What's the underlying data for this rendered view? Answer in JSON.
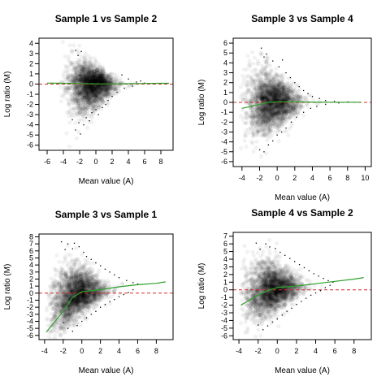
{
  "chart_data": [
    {
      "type": "scatter",
      "title": "Sample 1 vs Sample 2",
      "xlabel": "Mean value (A)",
      "ylabel": "Log ratio (M)",
      "xlim": [
        -7,
        9.5
      ],
      "ylim": [
        -6.5,
        4.5
      ],
      "xticks": [
        -6,
        -4,
        -2,
        0,
        2,
        4,
        6,
        8
      ],
      "yticks": [
        -6,
        -5,
        -4,
        -3,
        -2,
        -1,
        0,
        1,
        2,
        3,
        4
      ],
      "reference_line": 0,
      "reference_color": "#d62728",
      "fit_color": "#2ca02c",
      "fit_curve": {
        "x": [
          -6,
          -4,
          -2,
          0,
          2,
          4,
          6,
          8,
          9
        ],
        "y": [
          0.1,
          0.08,
          0.05,
          0.02,
          0.02,
          0.04,
          0.06,
          0.08,
          0.08
        ]
      },
      "density": {
        "x_range": [
          -4.5,
          5
        ],
        "center_x": -0.5,
        "upper_max": 3.5,
        "lower_min": -5
      },
      "outliers": [
        [
          -2.5,
          3.3
        ],
        [
          -2.2,
          2.8
        ],
        [
          -1.8,
          3.2
        ],
        [
          -2.9,
          -3.5
        ],
        [
          -2.5,
          -4.5
        ],
        [
          -2.1,
          -3.8
        ],
        [
          -1.9,
          -4.9
        ],
        [
          -1.5,
          -4.0
        ],
        [
          -1.2,
          -3.3
        ],
        [
          -0.8,
          -3.6
        ],
        [
          -0.5,
          -2.8
        ],
        [
          0.0,
          -2.5
        ],
        [
          0.3,
          -3.0
        ],
        [
          0.8,
          -2.3
        ],
        [
          1.2,
          -2.0
        ],
        [
          1.5,
          -1.6
        ],
        [
          2.0,
          -1.2
        ],
        [
          2.6,
          -0.8
        ],
        [
          3.5,
          -0.4
        ],
        [
          4.5,
          -0.2
        ],
        [
          5.0,
          0.2
        ],
        [
          5.5,
          0.3
        ],
        [
          6.0,
          0.1
        ],
        [
          7.0,
          0.05
        ],
        [
          4.0,
          0.5
        ],
        [
          3.2,
          0.9
        ]
      ]
    },
    {
      "type": "scatter",
      "title": "Sample 3 vs Sample 4",
      "xlabel": "Mean value (A)",
      "ylabel": "Log ratio (M)",
      "xlim": [
        -5,
        10.7
      ],
      "ylim": [
        -6.5,
        6.5
      ],
      "xticks": [
        -4,
        -2,
        0,
        2,
        4,
        6,
        8,
        10
      ],
      "yticks": [
        -6,
        -5,
        -4,
        -3,
        -2,
        -1,
        0,
        1,
        2,
        3,
        4,
        5,
        6
      ],
      "reference_line": 0,
      "reference_color": "#d62728",
      "fit_color": "#2ca02c",
      "fit_curve": {
        "x": [
          -4,
          -3,
          -2,
          -1,
          0,
          2,
          4,
          6,
          8,
          9.5
        ],
        "y": [
          -0.6,
          -0.4,
          -0.2,
          0.0,
          0.05,
          0.05,
          0.03,
          0.02,
          0.02,
          0.02
        ]
      },
      "density": {
        "x_range": [
          -4.2,
          6
        ],
        "center_x": -0.5,
        "upper_max": 5,
        "lower_min": -5.2
      },
      "outliers": [
        [
          -1.8,
          5.5
        ],
        [
          -1.5,
          4.6
        ],
        [
          -1.2,
          4.9
        ],
        [
          -0.5,
          4.2
        ],
        [
          0.2,
          3.6
        ],
        [
          0.6,
          4.3
        ],
        [
          1.0,
          3.0
        ],
        [
          1.5,
          2.5
        ],
        [
          2.0,
          2.0
        ],
        [
          2.5,
          1.6
        ],
        [
          3.0,
          1.2
        ],
        [
          3.5,
          0.9
        ],
        [
          4.0,
          0.6
        ],
        [
          4.8,
          0.4
        ],
        [
          5.5,
          0.2
        ],
        [
          6.5,
          0.1
        ],
        [
          -2.0,
          -4.8
        ],
        [
          -1.5,
          -5.0
        ],
        [
          -1.0,
          -4.3
        ],
        [
          -0.5,
          -3.9
        ],
        [
          0.0,
          -3.3
        ],
        [
          0.5,
          -3.0
        ],
        [
          1.0,
          -2.6
        ],
        [
          1.6,
          -2.0
        ],
        [
          2.2,
          -1.5
        ],
        [
          3.0,
          -1.0
        ],
        [
          3.8,
          -0.6
        ],
        [
          4.5,
          -0.4
        ],
        [
          5.5,
          -0.2
        ],
        [
          7.0,
          -0.05
        ],
        [
          8.0,
          0.05
        ]
      ]
    },
    {
      "type": "scatter",
      "title": "Sample 3 vs Sample 1",
      "xlabel": "Mean value (A)",
      "ylabel": "Log ratio (M)",
      "xlim": [
        -4.6,
        9.8
      ],
      "ylim": [
        -6.6,
        8.4
      ],
      "xticks": [
        -4,
        -2,
        0,
        2,
        4,
        6,
        8
      ],
      "yticks": [
        -6,
        -5,
        -4,
        -3,
        -2,
        -1,
        0,
        1,
        2,
        3,
        4,
        5,
        6,
        7,
        8
      ],
      "reference_line": 0,
      "reference_color": "#d62728",
      "fit_color": "#2ca02c",
      "fit_curve": {
        "x": [
          -3.8,
          -3,
          -2,
          -1,
          0,
          2,
          4,
          6,
          8,
          9
        ],
        "y": [
          -5.5,
          -4.2,
          -2.6,
          -0.6,
          0.2,
          0.5,
          0.9,
          1.2,
          1.4,
          1.6
        ]
      },
      "density": {
        "x_range": [
          -3.8,
          6
        ],
        "center_x": -0.5,
        "upper_max": 7,
        "lower_min": -5.5
      },
      "outliers": [
        [
          -2.2,
          7.3
        ],
        [
          -1.8,
          6.2
        ],
        [
          -1.5,
          7.0
        ],
        [
          -1.0,
          6.3
        ],
        [
          -0.8,
          7.1
        ],
        [
          -0.3,
          6.6
        ],
        [
          0.2,
          5.8
        ],
        [
          0.5,
          5.2
        ],
        [
          1.0,
          4.8
        ],
        [
          1.5,
          4.3
        ],
        [
          2.0,
          3.9
        ],
        [
          2.5,
          3.4
        ],
        [
          3.0,
          3.0
        ],
        [
          3.5,
          2.6
        ],
        [
          4.0,
          2.2
        ],
        [
          4.8,
          1.8
        ],
        [
          5.5,
          1.5
        ],
        [
          6.0,
          1.3
        ],
        [
          -2.0,
          -4.2
        ],
        [
          -1.5,
          -5.0
        ],
        [
          -1.0,
          -5.4
        ],
        [
          -0.5,
          -4.6
        ],
        [
          0.0,
          -4.0
        ],
        [
          0.5,
          -3.5
        ],
        [
          1.0,
          -3.0
        ],
        [
          1.5,
          -2.6
        ],
        [
          2.0,
          -2.0
        ],
        [
          2.5,
          -1.6
        ],
        [
          3.0,
          -1.2
        ],
        [
          3.5,
          -0.9
        ],
        [
          4.0,
          -0.5
        ],
        [
          4.5,
          -0.2
        ],
        [
          5.0,
          0.1
        ],
        [
          5.5,
          0.5
        ]
      ]
    },
    {
      "type": "scatter",
      "title": "Sample 4 vs Sample 2",
      "xlabel": "Mean value (A)",
      "ylabel": "Log ratio (M)",
      "xlim": [
        -4.6,
        9.8
      ],
      "ylim": [
        -6.5,
        7.5
      ],
      "xticks": [
        -4,
        -2,
        0,
        2,
        4,
        6,
        8
      ],
      "yticks": [
        -6,
        -5,
        -4,
        -3,
        -2,
        -1,
        0,
        1,
        2,
        3,
        4,
        5,
        6,
        7
      ],
      "reference_line": 0,
      "reference_color": "#d62728",
      "fit_color": "#2ca02c",
      "fit_curve": {
        "x": [
          -3.8,
          -3,
          -2,
          -1,
          0,
          2,
          4,
          6,
          8,
          9
        ],
        "y": [
          -2.0,
          -1.4,
          -0.7,
          -0.1,
          0.3,
          0.5,
          0.8,
          1.1,
          1.4,
          1.6
        ]
      },
      "density": {
        "x_range": [
          -3.8,
          6
        ],
        "center_x": -0.5,
        "upper_max": 6,
        "lower_min": -5.3
      },
      "outliers": [
        [
          -2.2,
          6.1
        ],
        [
          -1.8,
          5.3
        ],
        [
          -1.2,
          6.0
        ],
        [
          -0.8,
          5.6
        ],
        [
          -0.2,
          5.4
        ],
        [
          0.3,
          4.9
        ],
        [
          0.8,
          4.5
        ],
        [
          1.3,
          4.1
        ],
        [
          1.8,
          3.7
        ],
        [
          2.3,
          3.3
        ],
        [
          2.8,
          2.9
        ],
        [
          3.3,
          2.5
        ],
        [
          3.8,
          2.1
        ],
        [
          4.3,
          1.8
        ],
        [
          4.8,
          1.5
        ],
        [
          5.3,
          1.2
        ],
        [
          5.8,
          1.0
        ],
        [
          -2.0,
          -4.6
        ],
        [
          -1.5,
          -5.2
        ],
        [
          -1.0,
          -4.7
        ],
        [
          -0.5,
          -4.2
        ],
        [
          0.0,
          -3.8
        ],
        [
          0.5,
          -3.3
        ],
        [
          1.0,
          -2.8
        ],
        [
          1.5,
          -2.4
        ],
        [
          2.0,
          -1.9
        ],
        [
          2.5,
          -1.5
        ],
        [
          3.0,
          -1.1
        ],
        [
          3.5,
          -0.7
        ],
        [
          4.0,
          -0.4
        ],
        [
          4.5,
          -0.1
        ],
        [
          5.0,
          0.3
        ],
        [
          5.5,
          0.6
        ]
      ]
    }
  ]
}
